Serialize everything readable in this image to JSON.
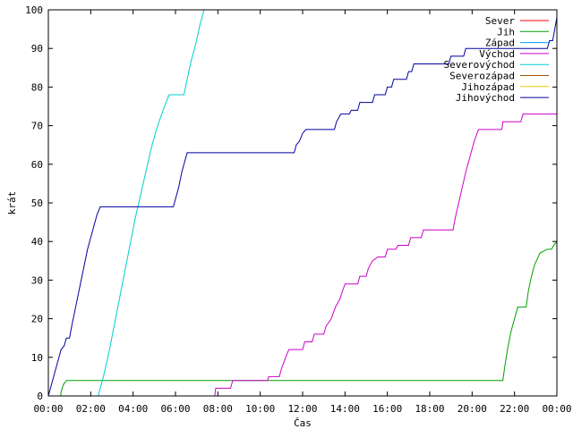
{
  "chart_data": {
    "type": "line",
    "xlabel": "Čas",
    "ylabel": "krát",
    "xlim": [
      0,
      24
    ],
    "ylim": [
      0,
      100
    ],
    "x_ticks": [
      {
        "v": 0,
        "label": "00:00"
      },
      {
        "v": 2,
        "label": "02:00"
      },
      {
        "v": 4,
        "label": "04:00"
      },
      {
        "v": 6,
        "label": "06:00"
      },
      {
        "v": 8,
        "label": "08:00"
      },
      {
        "v": 10,
        "label": "10:00"
      },
      {
        "v": 12,
        "label": "12:00"
      },
      {
        "v": 14,
        "label": "14:00"
      },
      {
        "v": 16,
        "label": "16:00"
      },
      {
        "v": 18,
        "label": "18:00"
      },
      {
        "v": 20,
        "label": "20:00"
      },
      {
        "v": 22,
        "label": "22:00"
      },
      {
        "v": 24,
        "label": "00:00"
      }
    ],
    "y_ticks": [
      0,
      10,
      20,
      30,
      40,
      50,
      60,
      70,
      80,
      90,
      100
    ],
    "grid": false,
    "legend_position": "top-right",
    "series": [
      {
        "name": "Sever",
        "color": "#ff0000",
        "points": []
      },
      {
        "name": "Jih",
        "color": "#00a000",
        "points": [
          [
            0.58,
            0
          ],
          [
            0.6,
            1
          ],
          [
            0.65,
            2
          ],
          [
            0.72,
            3
          ],
          [
            0.85,
            4
          ],
          [
            21.45,
            4
          ],
          [
            21.55,
            8
          ],
          [
            21.7,
            13
          ],
          [
            21.85,
            17
          ],
          [
            22.0,
            20
          ],
          [
            22.15,
            23
          ],
          [
            22.55,
            23
          ],
          [
            22.65,
            27
          ],
          [
            22.8,
            31
          ],
          [
            22.95,
            34
          ],
          [
            23.2,
            37
          ],
          [
            23.55,
            38
          ],
          [
            23.75,
            38
          ],
          [
            23.85,
            39
          ],
          [
            24.0,
            40
          ]
        ]
      },
      {
        "name": "Západ",
        "color": "#00a0ff",
        "points": []
      },
      {
        "name": "Východ",
        "color": "#cc00cc",
        "points": [
          [
            7.85,
            0
          ],
          [
            7.9,
            2
          ],
          [
            8.6,
            2
          ],
          [
            8.7,
            4
          ],
          [
            10.35,
            4
          ],
          [
            10.4,
            5
          ],
          [
            10.9,
            5
          ],
          [
            11.0,
            7
          ],
          [
            11.2,
            10
          ],
          [
            11.35,
            12
          ],
          [
            12.0,
            12
          ],
          [
            12.1,
            14
          ],
          [
            12.45,
            14
          ],
          [
            12.55,
            16
          ],
          [
            13.0,
            16
          ],
          [
            13.1,
            18
          ],
          [
            13.35,
            20
          ],
          [
            13.55,
            23
          ],
          [
            13.75,
            25
          ],
          [
            14.0,
            29
          ],
          [
            14.6,
            29
          ],
          [
            14.7,
            31
          ],
          [
            15.0,
            31
          ],
          [
            15.1,
            33
          ],
          [
            15.3,
            35
          ],
          [
            15.55,
            36
          ],
          [
            15.9,
            36
          ],
          [
            16.0,
            38
          ],
          [
            16.4,
            38
          ],
          [
            16.5,
            39
          ],
          [
            17.0,
            39
          ],
          [
            17.1,
            41
          ],
          [
            17.6,
            41
          ],
          [
            17.7,
            43
          ],
          [
            19.1,
            43
          ],
          [
            19.2,
            46
          ],
          [
            19.45,
            52
          ],
          [
            19.7,
            58
          ],
          [
            19.95,
            63
          ],
          [
            20.1,
            66
          ],
          [
            20.3,
            69
          ],
          [
            21.4,
            69
          ],
          [
            21.45,
            71
          ],
          [
            22.3,
            71
          ],
          [
            22.4,
            73
          ],
          [
            24.0,
            73
          ]
        ]
      },
      {
        "name": "Severovýchod",
        "color": "#00cccc",
        "points": [
          [
            2.35,
            0
          ],
          [
            2.6,
            5
          ],
          [
            2.85,
            11
          ],
          [
            3.1,
            18
          ],
          [
            3.35,
            25
          ],
          [
            3.6,
            32
          ],
          [
            3.85,
            39
          ],
          [
            4.1,
            46
          ],
          [
            4.35,
            52
          ],
          [
            4.6,
            58
          ],
          [
            4.85,
            64
          ],
          [
            5.1,
            69
          ],
          [
            5.35,
            73
          ],
          [
            5.55,
            76
          ],
          [
            5.7,
            78
          ],
          [
            6.4,
            78
          ],
          [
            6.55,
            82
          ],
          [
            6.75,
            87
          ],
          [
            6.95,
            91
          ],
          [
            7.15,
            96
          ],
          [
            7.35,
            100
          ]
        ]
      },
      {
        "name": "Severozápad",
        "color": "#a05000",
        "points": []
      },
      {
        "name": "Jihozápad",
        "color": "#e0d000",
        "points": []
      },
      {
        "name": "Jihovýchod",
        "color": "#0000a0",
        "points": [
          [
            0.0,
            0
          ],
          [
            0.15,
            3
          ],
          [
            0.3,
            6
          ],
          [
            0.45,
            9
          ],
          [
            0.6,
            12
          ],
          [
            0.75,
            13
          ],
          [
            0.85,
            15
          ],
          [
            1.0,
            15
          ],
          [
            1.1,
            18
          ],
          [
            1.25,
            22
          ],
          [
            1.4,
            26
          ],
          [
            1.55,
            30
          ],
          [
            1.7,
            34
          ],
          [
            1.85,
            38
          ],
          [
            2.0,
            41
          ],
          [
            2.15,
            44
          ],
          [
            2.3,
            47
          ],
          [
            2.45,
            49
          ],
          [
            5.9,
            49
          ],
          [
            6.0,
            51
          ],
          [
            6.15,
            54
          ],
          [
            6.3,
            58
          ],
          [
            6.45,
            61
          ],
          [
            6.55,
            63
          ],
          [
            11.6,
            63
          ],
          [
            11.7,
            65
          ],
          [
            11.85,
            66
          ],
          [
            12.0,
            68
          ],
          [
            12.15,
            69
          ],
          [
            13.5,
            69
          ],
          [
            13.6,
            71
          ],
          [
            13.8,
            73
          ],
          [
            14.2,
            73
          ],
          [
            14.3,
            74
          ],
          [
            14.6,
            74
          ],
          [
            14.7,
            76
          ],
          [
            15.3,
            76
          ],
          [
            15.4,
            78
          ],
          [
            15.9,
            78
          ],
          [
            16.0,
            80
          ],
          [
            16.2,
            80
          ],
          [
            16.3,
            82
          ],
          [
            16.9,
            82
          ],
          [
            17.0,
            84
          ],
          [
            17.15,
            84
          ],
          [
            17.25,
            86
          ],
          [
            18.9,
            86
          ],
          [
            19.0,
            88
          ],
          [
            19.6,
            88
          ],
          [
            19.7,
            90
          ],
          [
            23.55,
            90
          ],
          [
            23.65,
            92
          ],
          [
            23.8,
            92
          ],
          [
            23.9,
            95
          ],
          [
            24.0,
            98
          ]
        ]
      }
    ]
  }
}
